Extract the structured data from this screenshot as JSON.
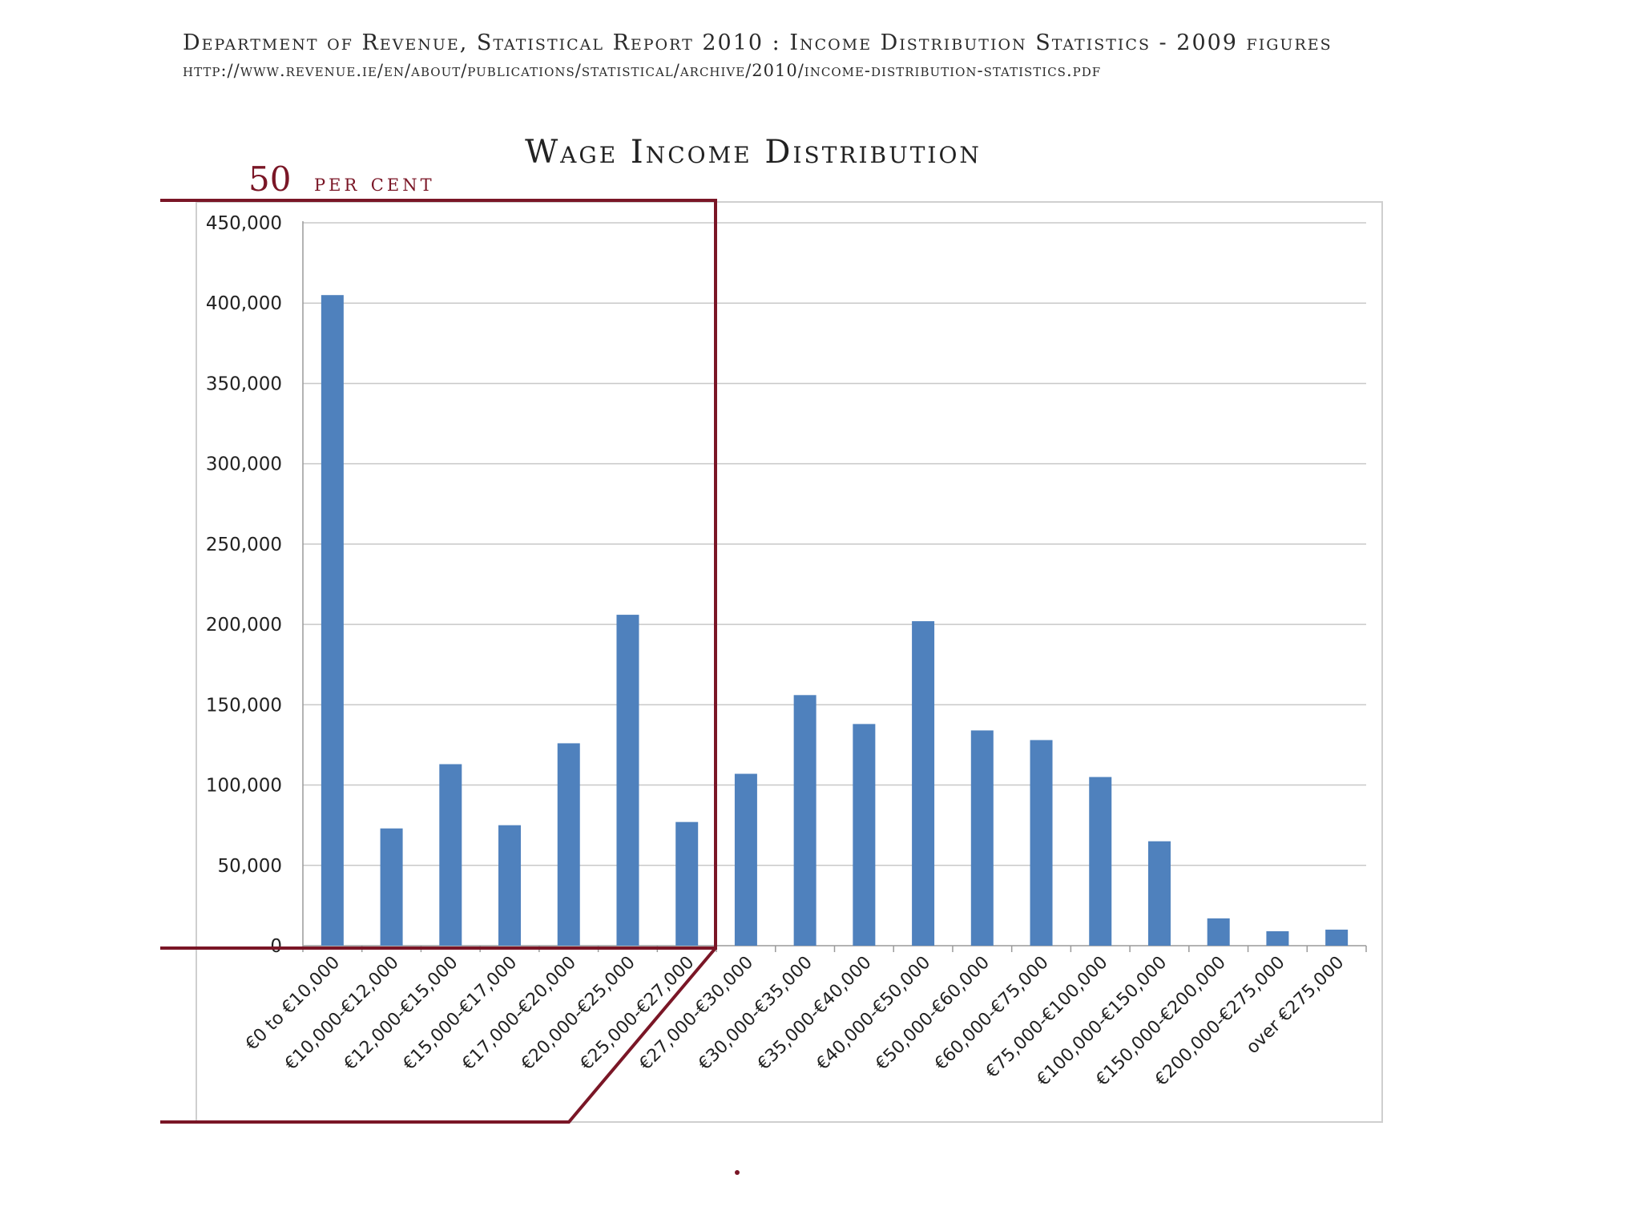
{
  "header": {
    "source_line": "Department of Revenue, Statistical Report 2010 : Income Distribution Statistics -   2009 figures",
    "source_url": "http://www.revenue.ie/en/about/publications/statistical/archive/2010/income-distribution-statistics.pdf"
  },
  "annotation": {
    "number": "50",
    "label": "per cent",
    "color": "#7a1626"
  },
  "colors": {
    "bar": "#4f81bd",
    "grid": "#c8c8c8",
    "highlight_box": "#7a1626"
  },
  "chart_data": {
    "type": "bar",
    "title": "Wage Income Distribution",
    "xlabel": "",
    "ylabel": "",
    "ylim": [
      0,
      450000
    ],
    "yticks": [
      0,
      50000,
      100000,
      150000,
      200000,
      250000,
      300000,
      350000,
      400000,
      450000
    ],
    "ytick_labels": [
      "0",
      "50,000",
      "100,000",
      "150,000",
      "200,000",
      "250,000",
      "300,000",
      "350,000",
      "400,000",
      "450,000"
    ],
    "grid": true,
    "highlight": "first 7 bands boxed as 50 per cent",
    "categories": [
      "€0 to €10,000",
      "€10,000-€12,000",
      "€12,000-€15,000",
      "€15,000-€17,000",
      "€17,000-€20,000",
      "€20,000-€25,000",
      "€25,000-€27,000",
      "€27,000-€30,000",
      "€30,000-€35,000",
      "€35,000-€40,000",
      "€40,000-€50,000",
      "€50,000-€60,000",
      "€60,000-€75,000",
      "€75,000-€100,000",
      "€100,000-€150,000",
      "€150,000-€200,000",
      "€200,000-€275,000",
      "over €275,000"
    ],
    "values": [
      405000,
      73000,
      113000,
      75000,
      126000,
      206000,
      77000,
      107000,
      156000,
      138000,
      202000,
      134000,
      128000,
      105000,
      65000,
      17000,
      9000,
      10000
    ]
  }
}
